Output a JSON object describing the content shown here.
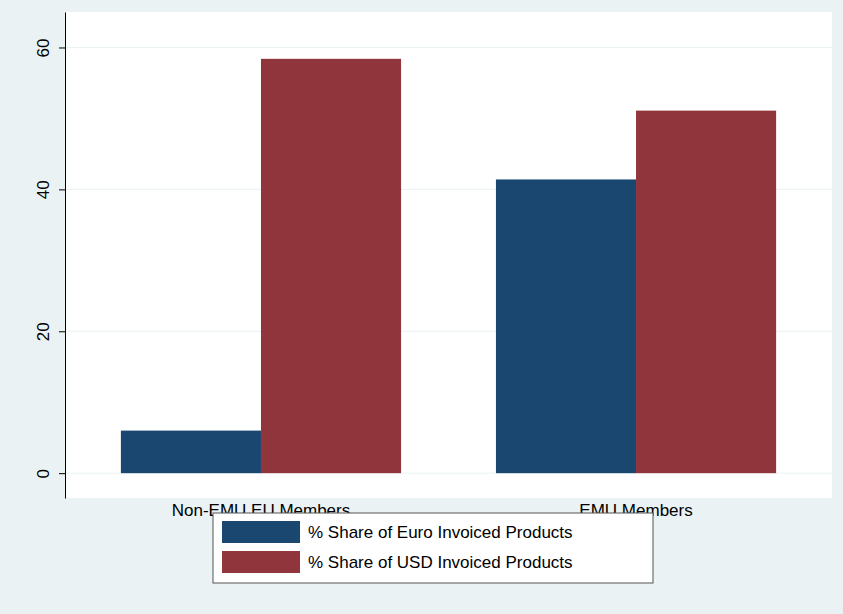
{
  "chart_data": {
    "type": "bar",
    "categories": [
      "Non-EMU EU Members",
      "EMU Members"
    ],
    "series": [
      {
        "name": "% Share of Euro Invoiced Products",
        "color": "#1a476f",
        "values": [
          6.0,
          41.4
        ]
      },
      {
        "name": "% Share of USD Invoiced Products",
        "color": "#90353b",
        "values": [
          58.4,
          51.1
        ]
      }
    ],
    "ylim": [
      -3.5,
      65
    ],
    "yticks": [
      0,
      20,
      40,
      60
    ],
    "grid": true,
    "legend": "bottom"
  }
}
